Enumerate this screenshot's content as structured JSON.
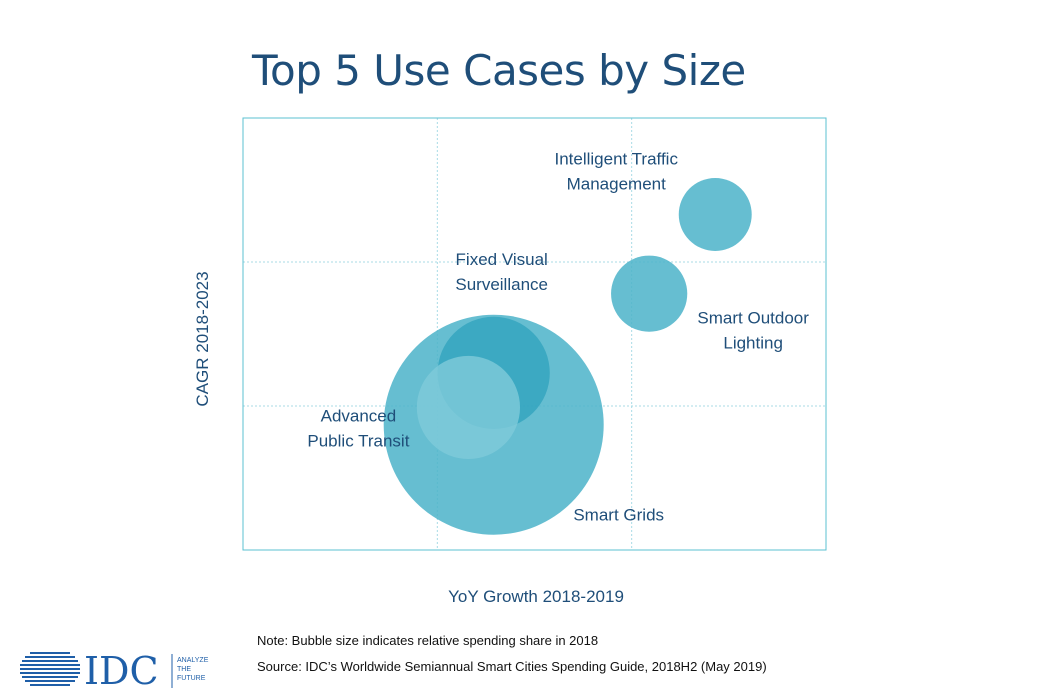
{
  "title": "Top 5 Use Cases by Size",
  "chart_data": {
    "type": "scatter",
    "subtype": "bubble",
    "title": "Top 5 Use Cases by Size",
    "xlabel": "YoY Growth 2018-2019",
    "ylabel": "CAGR 2018-2023",
    "xlim": [
      0,
      3
    ],
    "ylim": [
      0,
      3
    ],
    "grid": true,
    "colors": {
      "bubble": "#4bb3c9",
      "bubble_dark": "#2fa2bc",
      "bubble_light": "#7fcad9",
      "label": "#1f4e79",
      "frame": "#5bc0d2",
      "grid": "#a9dbe6"
    },
    "points": [
      {
        "name": "Smart Grids",
        "label": [
          "Smart Grids"
        ],
        "x": 1.29,
        "y": 0.87,
        "size": 100
      },
      {
        "name": "Fixed Visual Surveillance",
        "label": [
          "Fixed Visual",
          "Surveillance"
        ],
        "x": 1.29,
        "y": 1.23,
        "size": 26
      },
      {
        "name": "Advanced Public Transit",
        "label": [
          "Advanced",
          "Public Transit"
        ],
        "x": 1.16,
        "y": 0.99,
        "size": 22
      },
      {
        "name": "Smart Outdoor Lighting",
        "label": [
          "Smart Outdoor",
          "Lighting"
        ],
        "x": 2.09,
        "y": 1.78,
        "size": 12
      },
      {
        "name": "Intelligent Traffic Management",
        "label": [
          "Intelligent Traffic",
          "Management"
        ],
        "x": 2.43,
        "y": 2.33,
        "size": 11
      }
    ]
  },
  "notes": {
    "note": "Note: Bubble size indicates relative spending share in 2018",
    "source": "Source: IDC’s Worldwide Semiannual Smart Cities Spending Guide, 2018H2 (May 2019)"
  },
  "logo": {
    "brand": "IDC",
    "tagline": [
      "ANALYZE",
      "THE",
      "FUTURE"
    ],
    "color": "#1f5fa8"
  }
}
